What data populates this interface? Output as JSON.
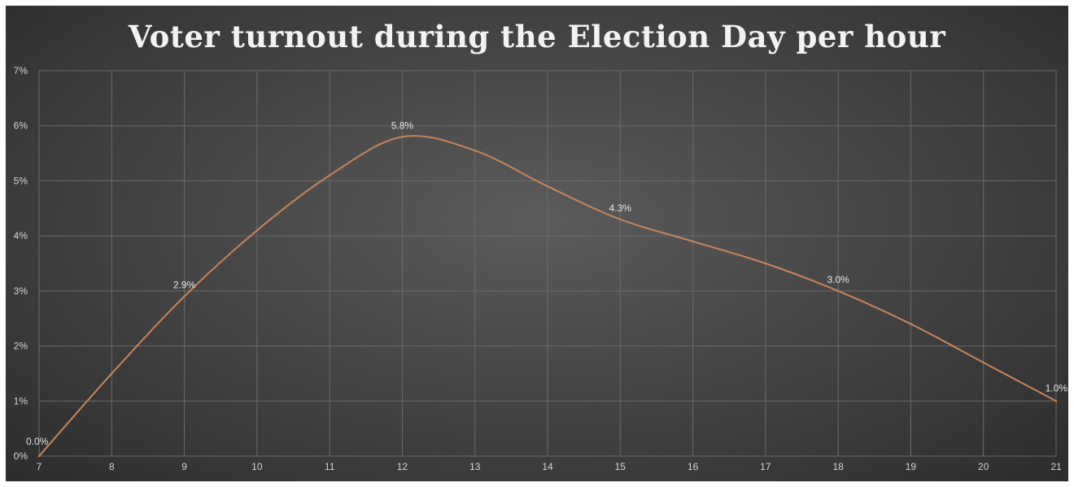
{
  "chart_data": {
    "type": "line",
    "title": "Voter turnout during the Election Day per hour",
    "x": [
      7,
      8,
      9,
      10,
      11,
      12,
      13,
      14,
      15,
      16,
      17,
      18,
      19,
      20,
      21
    ],
    "xlim": [
      7,
      21
    ],
    "ylim": [
      0,
      7
    ],
    "yticks": [
      "0%",
      "1%",
      "2%",
      "3%",
      "4%",
      "5%",
      "6%",
      "7%"
    ],
    "grid": true,
    "series": [
      {
        "values": [
          0.0,
          1.5,
          2.9,
          4.1,
          5.1,
          5.8,
          5.55,
          4.9,
          4.3,
          3.9,
          3.5,
          3.0,
          2.4,
          1.7,
          1.0
        ],
        "color": "#c9845a"
      }
    ],
    "data_labels": [
      {
        "x": 7,
        "y": 0.0,
        "text": "0.0%"
      },
      {
        "x": 9,
        "y": 2.9,
        "text": "2.9%"
      },
      {
        "x": 12,
        "y": 5.8,
        "text": "5.8%"
      },
      {
        "x": 15,
        "y": 4.3,
        "text": "4.3%"
      },
      {
        "x": 18,
        "y": 3.0,
        "text": "3.0%"
      },
      {
        "x": 21,
        "y": 1.0,
        "text": "1.0%"
      }
    ]
  }
}
